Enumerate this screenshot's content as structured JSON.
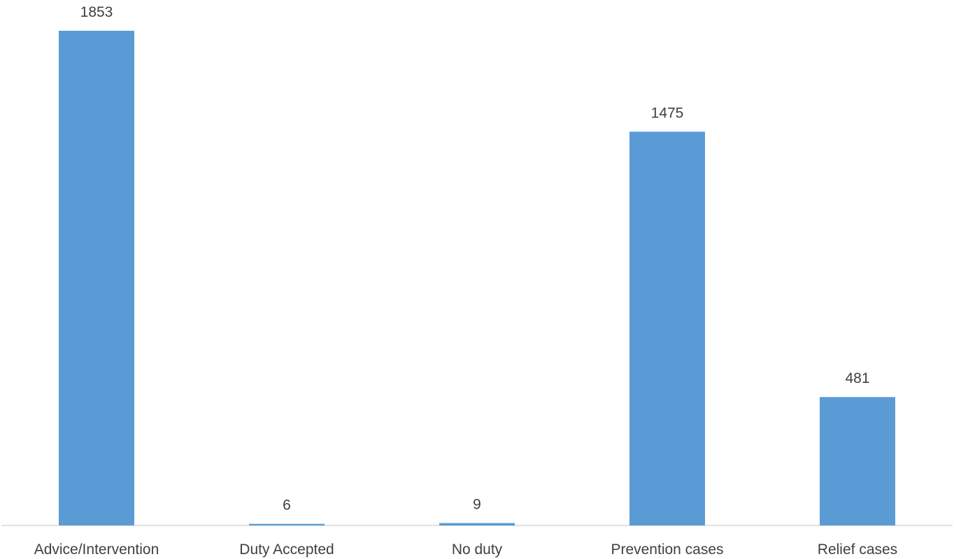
{
  "chart_data": {
    "type": "bar",
    "categories": [
      "Advice/Intervention",
      "Duty Accepted",
      "No duty",
      "Prevention cases",
      "Relief cases"
    ],
    "values": [
      1853,
      6,
      9,
      1475,
      481
    ],
    "title": "",
    "xlabel": "",
    "ylabel": "",
    "ylim": [
      0,
      1853
    ],
    "grid": false,
    "legend": "none",
    "data_labels": true,
    "colors": {
      "bar": "#5b9bd5",
      "axis": "#d9d9d9",
      "text": "#404040"
    }
  }
}
